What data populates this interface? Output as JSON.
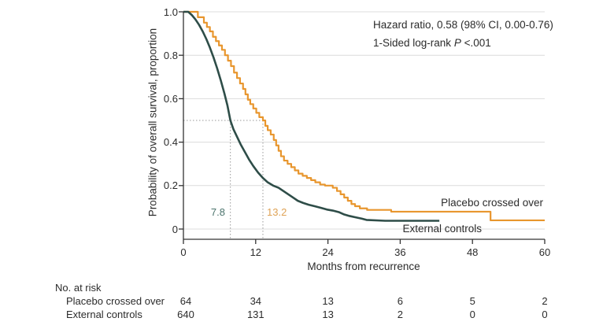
{
  "figure": {
    "annotation": {
      "hazard_ratio": "Hazard ratio, 0.58 (98% CI, 0.00-0.76)",
      "logrank_prefix": "1-Sided log-rank ",
      "p_label": "P",
      "p_value": " <.001"
    },
    "y_axis": {
      "title": "Probability of overall survival, proportion",
      "ticks": [
        "1.0",
        "0.8",
        "0.6",
        "0.4",
        "0.2",
        "0"
      ]
    },
    "x_axis": {
      "title": "Months from recurrence",
      "ticks": [
        "0",
        "12",
        "24",
        "36",
        "48",
        "60"
      ]
    },
    "medians": {
      "external_controls_label": "7.8",
      "placebo_label": "13.2"
    },
    "curve_labels": {
      "placebo": "Placebo crossed over",
      "external": "External controls"
    },
    "risk_table": {
      "title": "No. at risk",
      "rows": [
        {
          "label": "Placebo crossed over",
          "values": [
            "64",
            "34",
            "13",
            "6",
            "5",
            "2"
          ]
        },
        {
          "label": "External controls",
          "values": [
            "640",
            "131",
            "13",
            "2",
            "0",
            "0"
          ]
        }
      ]
    },
    "colors": {
      "placebo_curve": "#E8962E",
      "external_curve": "#2E4D48",
      "median_placebo_text": "#DFA356",
      "median_external_text": "#4C746D",
      "gridline": "#DCDCDC",
      "axis": "#333333",
      "dotted_reference": "#999999"
    }
  },
  "chart_data": {
    "type": "line",
    "subtype": "kaplan-meier",
    "title": "",
    "xlabel": "Months from recurrence",
    "ylabel": "Probability of overall survival, proportion",
    "xlim": [
      0,
      60
    ],
    "ylim": [
      0,
      1.0
    ],
    "x_ticks": [
      0,
      12,
      24,
      36,
      48,
      60
    ],
    "y_ticks": [
      0,
      0.2,
      0.4,
      0.6,
      0.8,
      1.0
    ],
    "grid": true,
    "stats": {
      "hazard_ratio": 0.58,
      "ci_level": "98%",
      "ci": [
        0.0,
        0.76
      ],
      "p_value": "<.001",
      "test": "1-sided log-rank"
    },
    "median_reference": {
      "y": 0.5,
      "x_values": [
        7.8,
        13.2
      ]
    },
    "series": [
      {
        "name": "Placebo crossed over",
        "color": "#E8962E",
        "median_months": 13.2,
        "render": "step",
        "points": [
          [
            2.4,
            0.975
          ],
          [
            3.4,
            0.95
          ],
          [
            3.9,
            0.93
          ],
          [
            4.4,
            0.91
          ],
          [
            4.9,
            0.885
          ],
          [
            5.4,
            0.865
          ],
          [
            5.9,
            0.845
          ],
          [
            6.4,
            0.825
          ],
          [
            6.9,
            0.8
          ],
          [
            7.4,
            0.775
          ],
          [
            7.9,
            0.75
          ],
          [
            8.4,
            0.72
          ],
          [
            8.9,
            0.695
          ],
          [
            9.4,
            0.67
          ],
          [
            9.9,
            0.645
          ],
          [
            10.3,
            0.62
          ],
          [
            10.7,
            0.595
          ],
          [
            11.1,
            0.575
          ],
          [
            11.6,
            0.555
          ],
          [
            12.1,
            0.535
          ],
          [
            12.6,
            0.515
          ],
          [
            13.2,
            0.5
          ],
          [
            13.6,
            0.475
          ],
          [
            14.0,
            0.455
          ],
          [
            14.5,
            0.435
          ],
          [
            15.0,
            0.41
          ],
          [
            15.4,
            0.385
          ],
          [
            15.8,
            0.36
          ],
          [
            16.2,
            0.335
          ],
          [
            16.7,
            0.315
          ],
          [
            17.3,
            0.3
          ],
          [
            17.9,
            0.285
          ],
          [
            18.5,
            0.27
          ],
          [
            19.1,
            0.255
          ],
          [
            19.8,
            0.245
          ],
          [
            20.5,
            0.235
          ],
          [
            21.2,
            0.225
          ],
          [
            21.9,
            0.215
          ],
          [
            22.7,
            0.205
          ],
          [
            23.5,
            0.2
          ],
          [
            24.8,
            0.19
          ],
          [
            25.5,
            0.175
          ],
          [
            26.1,
            0.16
          ],
          [
            26.7,
            0.145
          ],
          [
            27.3,
            0.13
          ],
          [
            27.9,
            0.115
          ],
          [
            28.5,
            0.105
          ],
          [
            29.3,
            0.095
          ],
          [
            30.5,
            0.088
          ],
          [
            34.5,
            0.08
          ],
          [
            51.0,
            0.04
          ],
          [
            60,
            0.04
          ]
        ]
      },
      {
        "name": "External controls",
        "color": "#2E4D48",
        "median_months": 7.8,
        "render": "line",
        "points": [
          [
            0,
            1
          ],
          [
            0.8,
            1
          ],
          [
            1.4,
            0.985
          ],
          [
            2.0,
            0.965
          ],
          [
            2.6,
            0.94
          ],
          [
            3.2,
            0.91
          ],
          [
            3.8,
            0.875
          ],
          [
            4.4,
            0.835
          ],
          [
            5.0,
            0.79
          ],
          [
            5.6,
            0.74
          ],
          [
            6.2,
            0.685
          ],
          [
            6.8,
            0.625
          ],
          [
            7.3,
            0.57
          ],
          [
            7.8,
            0.5
          ],
          [
            8.3,
            0.46
          ],
          [
            8.9,
            0.425
          ],
          [
            9.5,
            0.39
          ],
          [
            10.2,
            0.355
          ],
          [
            10.9,
            0.32
          ],
          [
            11.6,
            0.29
          ],
          [
            12.4,
            0.26
          ],
          [
            13.2,
            0.235
          ],
          [
            14.0,
            0.215
          ],
          [
            14.9,
            0.2
          ],
          [
            15.8,
            0.19
          ],
          [
            16.6,
            0.175
          ],
          [
            17.4,
            0.16
          ],
          [
            18.2,
            0.145
          ],
          [
            19.0,
            0.13
          ],
          [
            19.9,
            0.12
          ],
          [
            20.8,
            0.112
          ],
          [
            21.8,
            0.105
          ],
          [
            22.8,
            0.098
          ],
          [
            23.8,
            0.09
          ],
          [
            24.8,
            0.085
          ],
          [
            25.8,
            0.078
          ],
          [
            26.6,
            0.068
          ],
          [
            27.6,
            0.06
          ],
          [
            28.6,
            0.054
          ],
          [
            29.6,
            0.048
          ],
          [
            30.4,
            0.042
          ],
          [
            33.5,
            0.038
          ],
          [
            42.5,
            0.038
          ]
        ]
      }
    ],
    "risk_table": {
      "label": "No. at risk",
      "time_points": [
        0,
        12,
        24,
        36,
        48,
        60
      ],
      "rows": [
        {
          "name": "Placebo crossed over",
          "counts": [
            64,
            34,
            13,
            6,
            5,
            2
          ]
        },
        {
          "name": "External controls",
          "counts": [
            640,
            131,
            13,
            2,
            0,
            0
          ]
        }
      ]
    }
  }
}
